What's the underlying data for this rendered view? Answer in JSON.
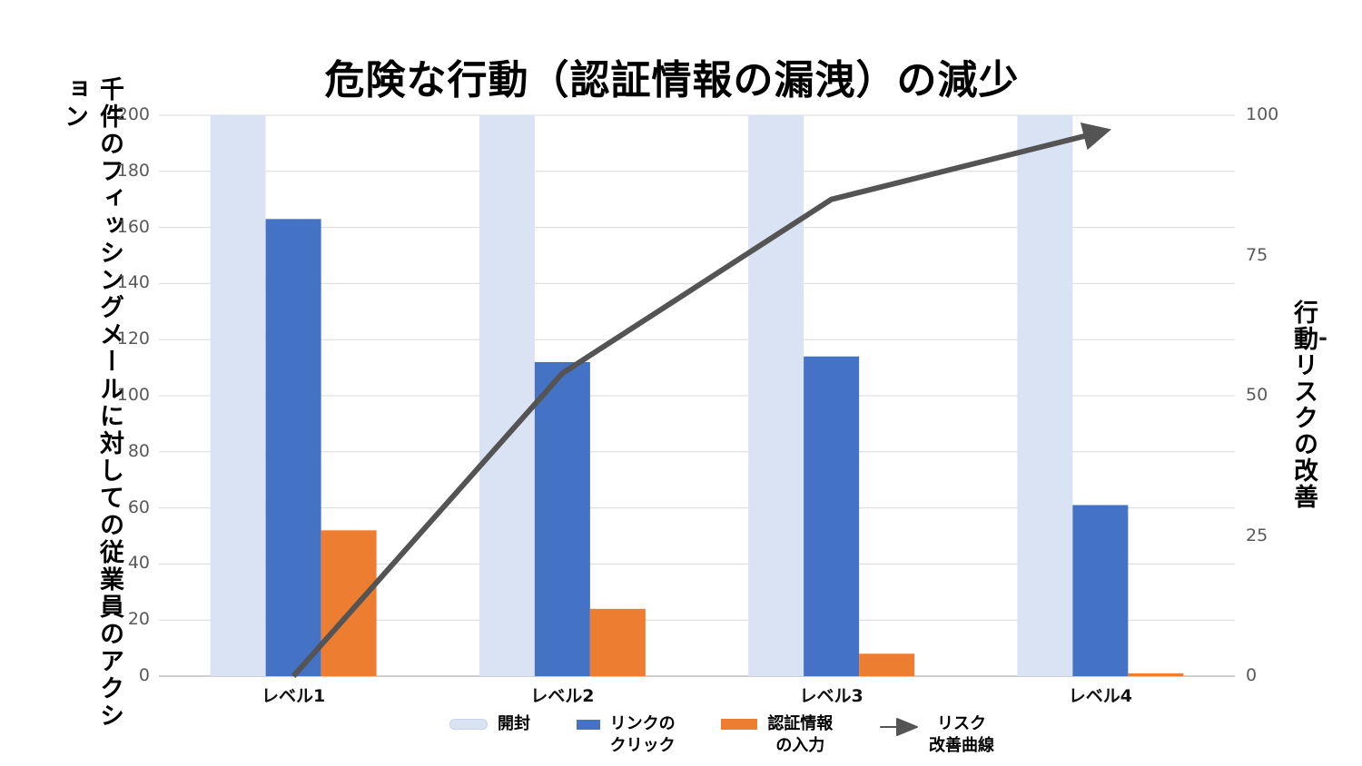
{
  "title": "危険な行動（認証情報の漏洩）の減少",
  "axes": {
    "left": {
      "title": "千件のフィッシングメールに対しての従業員のアクション",
      "ticks": [
        "200",
        "180",
        "160",
        "140",
        "120",
        "100",
        "80",
        "60",
        "40",
        "20",
        "0"
      ]
    },
    "right": {
      "title": "行動リスクの改善",
      "stray_dash": "-",
      "ticks": [
        "100",
        "75",
        "50",
        "25",
        "0"
      ]
    }
  },
  "x_labels": [
    "レベル1",
    "レベル2",
    "レベル3",
    "レベル4"
  ],
  "legend": {
    "items": [
      {
        "label": "開封",
        "kind": "bar",
        "color": "#dae3f3"
      },
      {
        "label": "リンクの\nクリック",
        "kind": "bar",
        "color": "#4472c4"
      },
      {
        "label": "認証情報\nの入力",
        "kind": "bar",
        "color": "#ed7d31"
      },
      {
        "label": "リスク\n改善曲線",
        "kind": "line-arrow",
        "color": "#545454"
      }
    ]
  },
  "chart_data": {
    "type": "bar",
    "subtype": "combo-bar-line",
    "title": "危険な行動（認証情報の漏洩）の減少",
    "categories": [
      "レベル1",
      "レベル2",
      "レベル3",
      "レベル4"
    ],
    "series": [
      {
        "name": "開封",
        "type": "bar",
        "axis": "left",
        "color": "#dae3f3",
        "values": [
          200,
          200,
          200,
          200
        ]
      },
      {
        "name": "リンクのクリック",
        "type": "bar",
        "axis": "left",
        "color": "#4472c4",
        "values": [
          163,
          112,
          114,
          61
        ]
      },
      {
        "name": "認証情報の入力",
        "type": "bar",
        "axis": "left",
        "color": "#ed7d31",
        "values": [
          52,
          24,
          8,
          1
        ]
      },
      {
        "name": "リスク改善曲線",
        "type": "line",
        "axis": "right",
        "color": "#545454",
        "values": [
          0,
          54,
          85,
          97
        ]
      }
    ],
    "left_axis": {
      "label": "千件のフィッシングメールに対しての従業員のアクション",
      "range": [
        0,
        200
      ],
      "tick_step": 20
    },
    "right_axis": {
      "label": "行動リスクの改善",
      "range": [
        0,
        100
      ],
      "tick_step": 25
    },
    "grid": true,
    "legend_position": "bottom",
    "colors": {
      "gridline": "#d9d9d9",
      "baseline": "#bfbfbf",
      "tick_text": "#595959"
    }
  }
}
